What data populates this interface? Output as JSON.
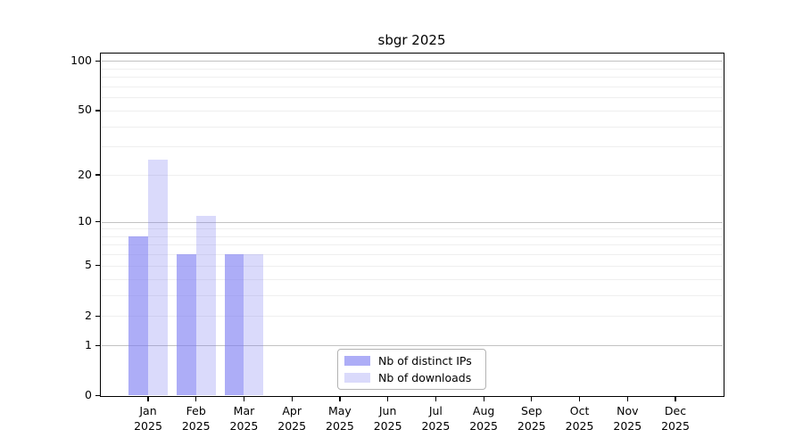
{
  "chart_data": {
    "type": "bar",
    "title": "sbgr 2025",
    "categories": [
      "Jan",
      "Feb",
      "Mar",
      "Apr",
      "May",
      "Jun",
      "Jul",
      "Aug",
      "Sep",
      "Oct",
      "Nov",
      "Dec"
    ],
    "category_year": "2025",
    "series": [
      {
        "name": "Nb of distinct IPs",
        "color": "rgba(122,122,242,0.62)",
        "values": [
          8,
          6,
          6,
          0,
          0,
          0,
          0,
          0,
          0,
          0,
          0,
          0
        ]
      },
      {
        "name": "Nb of downloads",
        "color": "rgba(122,122,242,0.28)",
        "values": [
          25,
          11,
          6,
          0,
          0,
          0,
          0,
          0,
          0,
          0,
          0,
          0
        ]
      }
    ],
    "scale": "log1p",
    "ylim": [
      0,
      111
    ],
    "yticks": [
      0,
      1,
      2,
      5,
      10,
      20,
      50,
      100
    ],
    "grid": {
      "on": true,
      "major": [
        1,
        10,
        100
      ],
      "minor": [
        2,
        3,
        4,
        5,
        6,
        7,
        8,
        9,
        20,
        30,
        40,
        50,
        60,
        70,
        80,
        90
      ]
    },
    "legend_position": "bottom-center",
    "colors": {
      "background": "#ffffff",
      "axis": "#000000",
      "grid_major": "#c2c2c2",
      "grid_minor": "#efefef",
      "legend_border": "#b3b3b3"
    }
  }
}
